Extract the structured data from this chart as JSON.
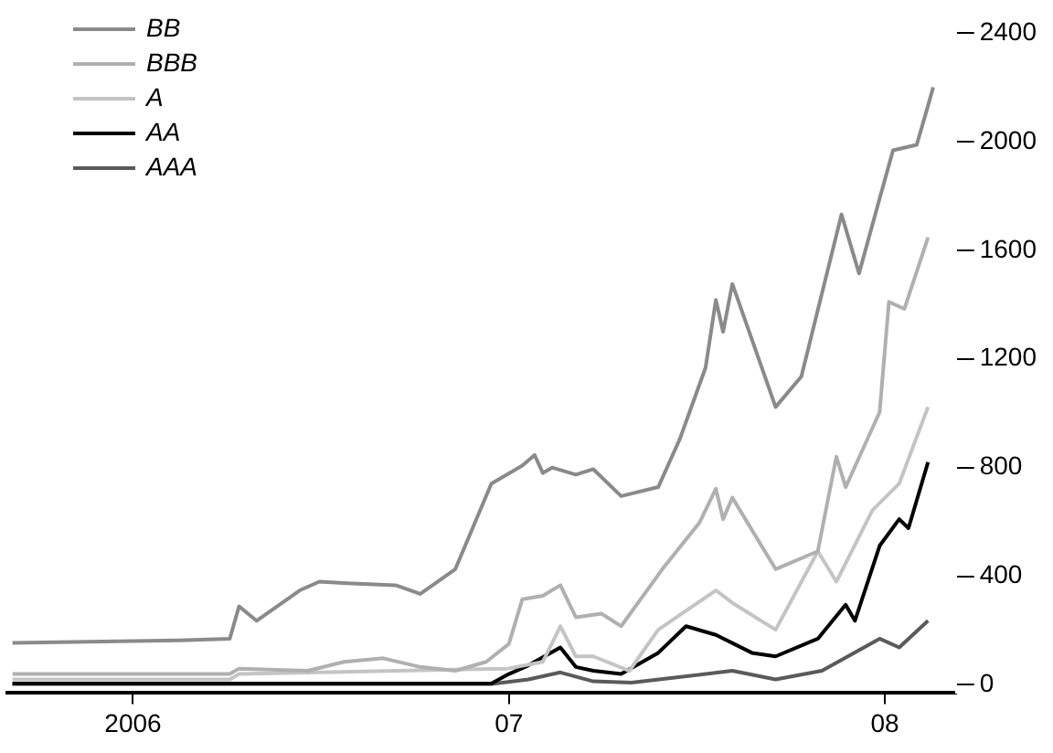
{
  "chart_data": {
    "type": "line",
    "legend": "top left",
    "grid": false,
    "marker": "none",
    "line_style": "solid",
    "xlim": [
      "2005-09-01",
      "2008-03-10"
    ],
    "xticks": [
      {
        "value": "2006-01-01",
        "label": "2006"
      },
      {
        "value": "2007-01-01",
        "label": "07"
      },
      {
        "value": "2008-01-01",
        "label": "08"
      }
    ],
    "ylim": [
      -30,
      2400
    ],
    "yticks": [
      0,
      400,
      800,
      1200,
      1600,
      2000,
      2400
    ],
    "series": [
      {
        "name": "BB",
        "color": "#8a8a8a",
        "x": [
          "2005-09-06",
          "2006-02-15",
          "2006-04-05",
          "2006-04-14",
          "2006-05-01",
          "2006-06-12",
          "2006-07-01",
          "2006-07-28",
          "2006-09-13",
          "2006-10-07",
          "2006-11-10",
          "2006-12-15",
          "2007-01-14",
          "2007-01-26",
          "2007-02-03",
          "2007-02-12",
          "2007-03-07",
          "2007-03-24",
          "2007-04-20",
          "2007-05-26",
          "2007-06-16",
          "2007-07-11",
          "2007-07-21",
          "2007-07-28",
          "2007-08-06",
          "2007-09-17",
          "2007-10-12",
          "2007-11-20",
          "2007-12-07",
          "2007-12-27",
          "2008-01-09",
          "2008-02-01",
          "2008-02-12",
          "2008-02-17"
        ],
        "values": [
          155,
          164,
          170,
          289,
          236,
          348,
          380,
          374,
          367,
          335,
          426,
          741,
          807,
          846,
          780,
          800,
          774,
          794,
          695,
          728,
          905,
          1168,
          1417,
          1300,
          1476,
          1023,
          1135,
          1732,
          1515,
          1790,
          1968,
          1988,
          2132,
          2200
        ]
      },
      {
        "name": "BBB",
        "color": "#b0b0b0",
        "x": [
          "2005-09-06",
          "2006-04-05",
          "2006-04-14",
          "2006-06-20",
          "2006-07-25",
          "2006-09-01",
          "2006-10-07",
          "2006-11-10",
          "2006-12-10",
          "2007-01-01",
          "2007-01-14",
          "2007-02-03",
          "2007-02-20",
          "2007-03-07",
          "2007-04-01",
          "2007-04-20",
          "2007-05-30",
          "2007-07-05",
          "2007-07-21",
          "2007-07-28",
          "2007-08-06",
          "2007-09-17",
          "2007-10-28",
          "2007-11-15",
          "2007-11-24",
          "2007-12-27",
          "2008-01-05",
          "2008-01-20",
          "2008-02-12"
        ],
        "values": [
          40,
          40,
          60,
          52,
          85,
          98,
          66,
          52,
          85,
          151,
          315,
          328,
          367,
          249,
          262,
          216,
          426,
          597,
          722,
          610,
          689,
          426,
          492,
          840,
          728,
          1004,
          1410,
          1384,
          1647
        ]
      },
      {
        "name": "A",
        "color": "#c4c4c4",
        "x": [
          "2005-09-06",
          "2006-04-05",
          "2006-04-14",
          "2006-12-31",
          "2007-02-03",
          "2007-02-20",
          "2007-03-07",
          "2007-03-24",
          "2007-04-28",
          "2007-05-26",
          "2007-07-21",
          "2007-08-06",
          "2007-09-17",
          "2007-10-28",
          "2007-11-15",
          "2007-12-20",
          "2008-01-15",
          "2008-02-12"
        ],
        "values": [
          20,
          20,
          40,
          60,
          85,
          216,
          105,
          105,
          52,
          203,
          348,
          302,
          203,
          492,
          380,
          643,
          741,
          1023
        ]
      },
      {
        "name": "AA",
        "color": "#000000",
        "x": [
          "2005-09-06",
          "2006-12-15",
          "2007-01-01",
          "2007-01-20",
          "2007-02-20",
          "2007-03-07",
          "2007-03-24",
          "2007-04-20",
          "2007-05-26",
          "2007-06-22",
          "2007-07-21",
          "2007-08-25",
          "2007-09-17",
          "2007-10-28",
          "2007-11-24",
          "2007-12-03",
          "2007-12-27",
          "2008-01-15",
          "2008-01-24",
          "2008-02-12"
        ],
        "values": [
          5,
          5,
          40,
          72,
          138,
          66,
          52,
          40,
          118,
          216,
          184,
          118,
          105,
          170,
          295,
          236,
          512,
          610,
          577,
          820
        ]
      },
      {
        "name": "AAA",
        "color": "#5a5a5a",
        "x": [
          "2005-09-06",
          "2006-12-15",
          "2007-01-20",
          "2007-02-20",
          "2007-03-24",
          "2007-04-30",
          "2007-08-06",
          "2007-09-17",
          "2007-11-01",
          "2007-12-27",
          "2008-01-15",
          "2008-02-12"
        ],
        "values": [
          3,
          3,
          20,
          46,
          13,
          8,
          52,
          20,
          52,
          170,
          138,
          236
        ]
      }
    ]
  }
}
